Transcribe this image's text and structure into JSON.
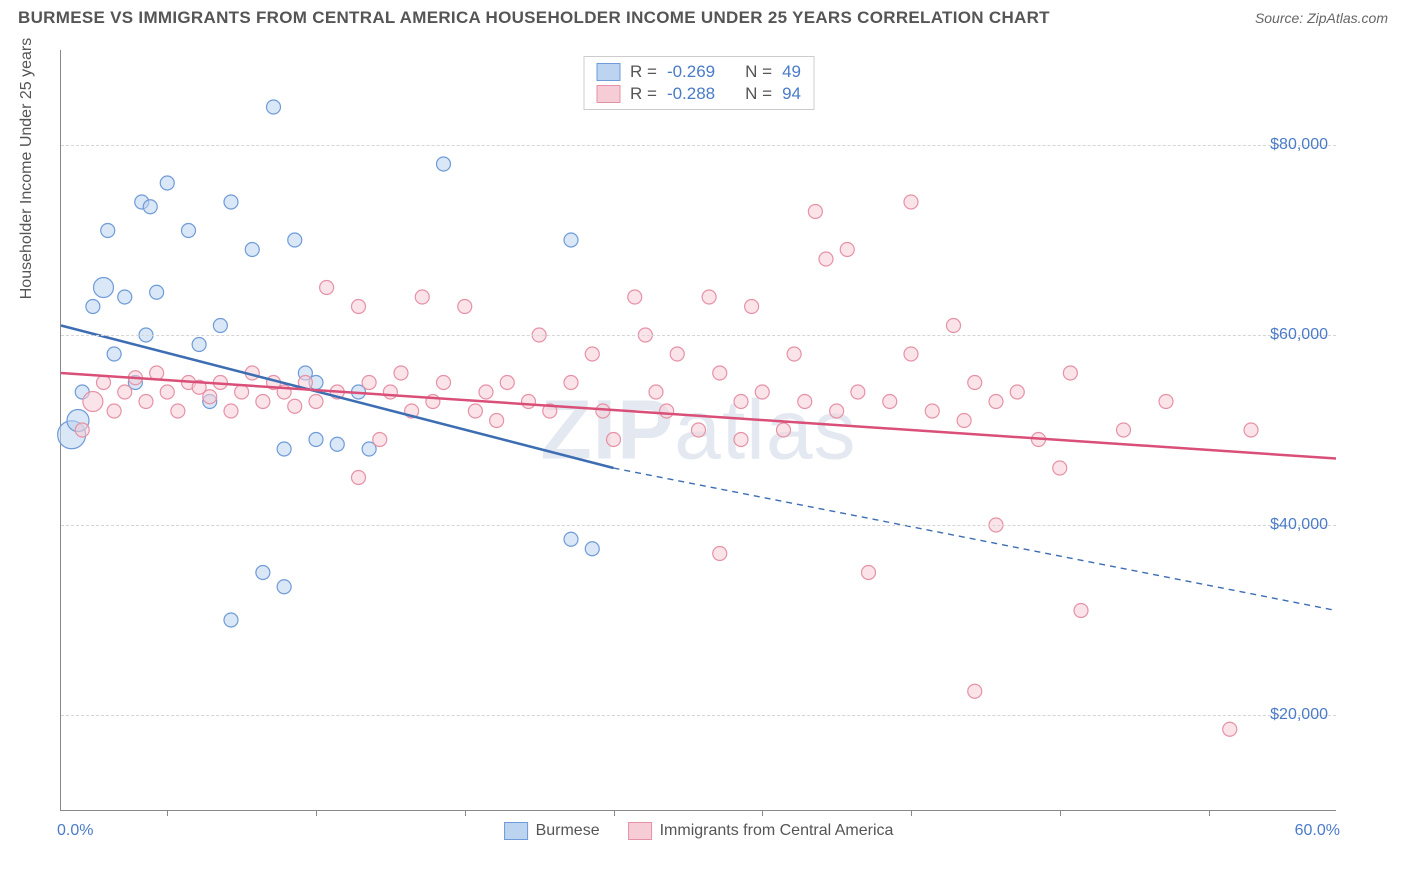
{
  "title": "BURMESE VS IMMIGRANTS FROM CENTRAL AMERICA HOUSEHOLDER INCOME UNDER 25 YEARS CORRELATION CHART",
  "source": "Source: ZipAtlas.com",
  "watermark": "ZIPatlas",
  "yaxis_title": "Householder Income Under 25 years",
  "chart": {
    "type": "scatter",
    "xlim": [
      0,
      60
    ],
    "ylim": [
      10000,
      90000
    ],
    "x_unit": "%",
    "y_unit": "$",
    "xlim_labels": [
      "0.0%",
      "60.0%"
    ],
    "ytick_values": [
      20000,
      40000,
      60000,
      80000
    ],
    "ytick_labels": [
      "$20,000",
      "$40,000",
      "$60,000",
      "$80,000"
    ],
    "xtick_positions": [
      5,
      12,
      19,
      26,
      33,
      40,
      47,
      54
    ],
    "grid_color": "#d5d5d5",
    "axis_color": "#888888",
    "background_color": "#ffffff",
    "label_color": "#4a7bc8",
    "title_color": "#555555",
    "title_fontsize": 17,
    "label_fontsize": 16
  },
  "series": [
    {
      "name": "Burmese",
      "fill_color": "#bcd4ef",
      "stroke_color": "#6f9bd8",
      "line_color": "#3d6db3",
      "fill_opacity": 0.55,
      "R": "-0.269",
      "N": "49",
      "trend": {
        "solid": {
          "x1": 0,
          "y1": 61000,
          "x2": 26,
          "y2": 46000
        },
        "dashed": {
          "x1": 26,
          "y1": 46000,
          "x2": 60,
          "y2": 31000
        }
      },
      "points": [
        {
          "x": 0.5,
          "y": 49500,
          "r": 14
        },
        {
          "x": 0.8,
          "y": 51000,
          "r": 11
        },
        {
          "x": 1.0,
          "y": 54000,
          "r": 7
        },
        {
          "x": 1.5,
          "y": 63000,
          "r": 7
        },
        {
          "x": 2.0,
          "y": 65000,
          "r": 10
        },
        {
          "x": 2.2,
          "y": 71000,
          "r": 7
        },
        {
          "x": 2.5,
          "y": 58000,
          "r": 7
        },
        {
          "x": 3.0,
          "y": 64000,
          "r": 7
        },
        {
          "x": 3.5,
          "y": 55000,
          "r": 7
        },
        {
          "x": 3.8,
          "y": 74000,
          "r": 7
        },
        {
          "x": 4.0,
          "y": 60000,
          "r": 7
        },
        {
          "x": 4.2,
          "y": 73500,
          "r": 7
        },
        {
          "x": 4.5,
          "y": 64500,
          "r": 7
        },
        {
          "x": 5.0,
          "y": 76000,
          "r": 7
        },
        {
          "x": 6.0,
          "y": 71000,
          "r": 7
        },
        {
          "x": 6.5,
          "y": 59000,
          "r": 7
        },
        {
          "x": 7.0,
          "y": 53000,
          "r": 7
        },
        {
          "x": 7.5,
          "y": 61000,
          "r": 7
        },
        {
          "x": 8.0,
          "y": 74000,
          "r": 7
        },
        {
          "x": 8.0,
          "y": 30000,
          "r": 7
        },
        {
          "x": 9.0,
          "y": 69000,
          "r": 7
        },
        {
          "x": 9.5,
          "y": 35000,
          "r": 7
        },
        {
          "x": 10,
          "y": 84000,
          "r": 7
        },
        {
          "x": 10.5,
          "y": 48000,
          "r": 7
        },
        {
          "x": 10.5,
          "y": 33500,
          "r": 7
        },
        {
          "x": 11,
          "y": 70000,
          "r": 7
        },
        {
          "x": 11.5,
          "y": 56000,
          "r": 7
        },
        {
          "x": 12,
          "y": 49000,
          "r": 7
        },
        {
          "x": 12,
          "y": 55000,
          "r": 7
        },
        {
          "x": 13,
          "y": 48500,
          "r": 7
        },
        {
          "x": 14,
          "y": 54000,
          "r": 7
        },
        {
          "x": 14.5,
          "y": 48000,
          "r": 7
        },
        {
          "x": 18,
          "y": 78000,
          "r": 7
        },
        {
          "x": 24,
          "y": 70000,
          "r": 7
        },
        {
          "x": 24,
          "y": 38500,
          "r": 7
        },
        {
          "x": 25,
          "y": 37500,
          "r": 7
        }
      ]
    },
    {
      "name": "Immigrants from Central America",
      "fill_color": "#f6cdd7",
      "stroke_color": "#e692a6",
      "line_color": "#d94f78",
      "fill_opacity": 0.55,
      "R": "-0.288",
      "N": "94",
      "trend": {
        "solid": {
          "x1": 0,
          "y1": 56000,
          "x2": 60,
          "y2": 47000
        }
      },
      "points": [
        {
          "x": 1,
          "y": 50000,
          "r": 7
        },
        {
          "x": 1.5,
          "y": 53000,
          "r": 10
        },
        {
          "x": 2,
          "y": 55000,
          "r": 7
        },
        {
          "x": 2.5,
          "y": 52000,
          "r": 7
        },
        {
          "x": 3,
          "y": 54000,
          "r": 7
        },
        {
          "x": 3.5,
          "y": 55500,
          "r": 7
        },
        {
          "x": 4,
          "y": 53000,
          "r": 7
        },
        {
          "x": 4.5,
          "y": 56000,
          "r": 7
        },
        {
          "x": 5,
          "y": 54000,
          "r": 7
        },
        {
          "x": 5.5,
          "y": 52000,
          "r": 7
        },
        {
          "x": 6,
          "y": 55000,
          "r": 7
        },
        {
          "x": 6.5,
          "y": 54500,
          "r": 7
        },
        {
          "x": 7,
          "y": 53500,
          "r": 7
        },
        {
          "x": 7.5,
          "y": 55000,
          "r": 7
        },
        {
          "x": 8,
          "y": 52000,
          "r": 7
        },
        {
          "x": 8.5,
          "y": 54000,
          "r": 7
        },
        {
          "x": 9,
          "y": 56000,
          "r": 7
        },
        {
          "x": 9.5,
          "y": 53000,
          "r": 7
        },
        {
          "x": 10,
          "y": 55000,
          "r": 7
        },
        {
          "x": 10.5,
          "y": 54000,
          "r": 7
        },
        {
          "x": 11,
          "y": 52500,
          "r": 7
        },
        {
          "x": 11.5,
          "y": 55000,
          "r": 7
        },
        {
          "x": 12,
          "y": 53000,
          "r": 7
        },
        {
          "x": 12.5,
          "y": 65000,
          "r": 7
        },
        {
          "x": 13,
          "y": 54000,
          "r": 7
        },
        {
          "x": 14,
          "y": 45000,
          "r": 7
        },
        {
          "x": 14,
          "y": 63000,
          "r": 7
        },
        {
          "x": 14.5,
          "y": 55000,
          "r": 7
        },
        {
          "x": 15,
          "y": 49000,
          "r": 7
        },
        {
          "x": 15.5,
          "y": 54000,
          "r": 7
        },
        {
          "x": 16,
          "y": 56000,
          "r": 7
        },
        {
          "x": 16.5,
          "y": 52000,
          "r": 7
        },
        {
          "x": 17,
          "y": 64000,
          "r": 7
        },
        {
          "x": 17.5,
          "y": 53000,
          "r": 7
        },
        {
          "x": 18,
          "y": 55000,
          "r": 7
        },
        {
          "x": 19,
          "y": 63000,
          "r": 7
        },
        {
          "x": 19.5,
          "y": 52000,
          "r": 7
        },
        {
          "x": 20,
          "y": 54000,
          "r": 7
        },
        {
          "x": 20.5,
          "y": 51000,
          "r": 7
        },
        {
          "x": 21,
          "y": 55000,
          "r": 7
        },
        {
          "x": 22,
          "y": 53000,
          "r": 7
        },
        {
          "x": 22.5,
          "y": 60000,
          "r": 7
        },
        {
          "x": 23,
          "y": 52000,
          "r": 7
        },
        {
          "x": 24,
          "y": 55000,
          "r": 7
        },
        {
          "x": 25,
          "y": 58000,
          "r": 7
        },
        {
          "x": 25.5,
          "y": 52000,
          "r": 7
        },
        {
          "x": 26,
          "y": 49000,
          "r": 7
        },
        {
          "x": 27,
          "y": 64000,
          "r": 7
        },
        {
          "x": 27.5,
          "y": 60000,
          "r": 7
        },
        {
          "x": 28,
          "y": 54000,
          "r": 7
        },
        {
          "x": 28.5,
          "y": 52000,
          "r": 7
        },
        {
          "x": 29,
          "y": 58000,
          "r": 7
        },
        {
          "x": 30,
          "y": 50000,
          "r": 7
        },
        {
          "x": 30.5,
          "y": 64000,
          "r": 7
        },
        {
          "x": 31,
          "y": 56000,
          "r": 7
        },
        {
          "x": 31,
          "y": 37000,
          "r": 7
        },
        {
          "x": 32,
          "y": 53000,
          "r": 7
        },
        {
          "x": 32,
          "y": 49000,
          "r": 7
        },
        {
          "x": 32.5,
          "y": 63000,
          "r": 7
        },
        {
          "x": 33,
          "y": 54000,
          "r": 7
        },
        {
          "x": 34,
          "y": 50000,
          "r": 7
        },
        {
          "x": 34.5,
          "y": 58000,
          "r": 7
        },
        {
          "x": 35,
          "y": 53000,
          "r": 7
        },
        {
          "x": 35.5,
          "y": 73000,
          "r": 7
        },
        {
          "x": 36,
          "y": 68000,
          "r": 7
        },
        {
          "x": 36.5,
          "y": 52000,
          "r": 7
        },
        {
          "x": 37,
          "y": 69000,
          "r": 7
        },
        {
          "x": 37.5,
          "y": 54000,
          "r": 7
        },
        {
          "x": 38,
          "y": 35000,
          "r": 7
        },
        {
          "x": 39,
          "y": 53000,
          "r": 7
        },
        {
          "x": 40,
          "y": 74000,
          "r": 7
        },
        {
          "x": 40,
          "y": 58000,
          "r": 7
        },
        {
          "x": 41,
          "y": 52000,
          "r": 7
        },
        {
          "x": 42,
          "y": 61000,
          "r": 7
        },
        {
          "x": 42.5,
          "y": 51000,
          "r": 7
        },
        {
          "x": 43,
          "y": 22500,
          "r": 7
        },
        {
          "x": 43,
          "y": 55000,
          "r": 7
        },
        {
          "x": 44,
          "y": 53000,
          "r": 7
        },
        {
          "x": 44,
          "y": 40000,
          "r": 7
        },
        {
          "x": 45,
          "y": 54000,
          "r": 7
        },
        {
          "x": 46,
          "y": 49000,
          "r": 7
        },
        {
          "x": 47,
          "y": 46000,
          "r": 7
        },
        {
          "x": 47.5,
          "y": 56000,
          "r": 7
        },
        {
          "x": 48,
          "y": 31000,
          "r": 7
        },
        {
          "x": 50,
          "y": 50000,
          "r": 7
        },
        {
          "x": 52,
          "y": 53000,
          "r": 7
        },
        {
          "x": 55,
          "y": 18500,
          "r": 7
        },
        {
          "x": 56,
          "y": 50000,
          "r": 7
        }
      ]
    }
  ],
  "legend_top": {
    "R_label": "R =",
    "N_label": "N ="
  },
  "legend_bottom": [
    {
      "label": "Burmese",
      "series_idx": 0
    },
    {
      "label": "Immigrants from Central America",
      "series_idx": 1
    }
  ]
}
